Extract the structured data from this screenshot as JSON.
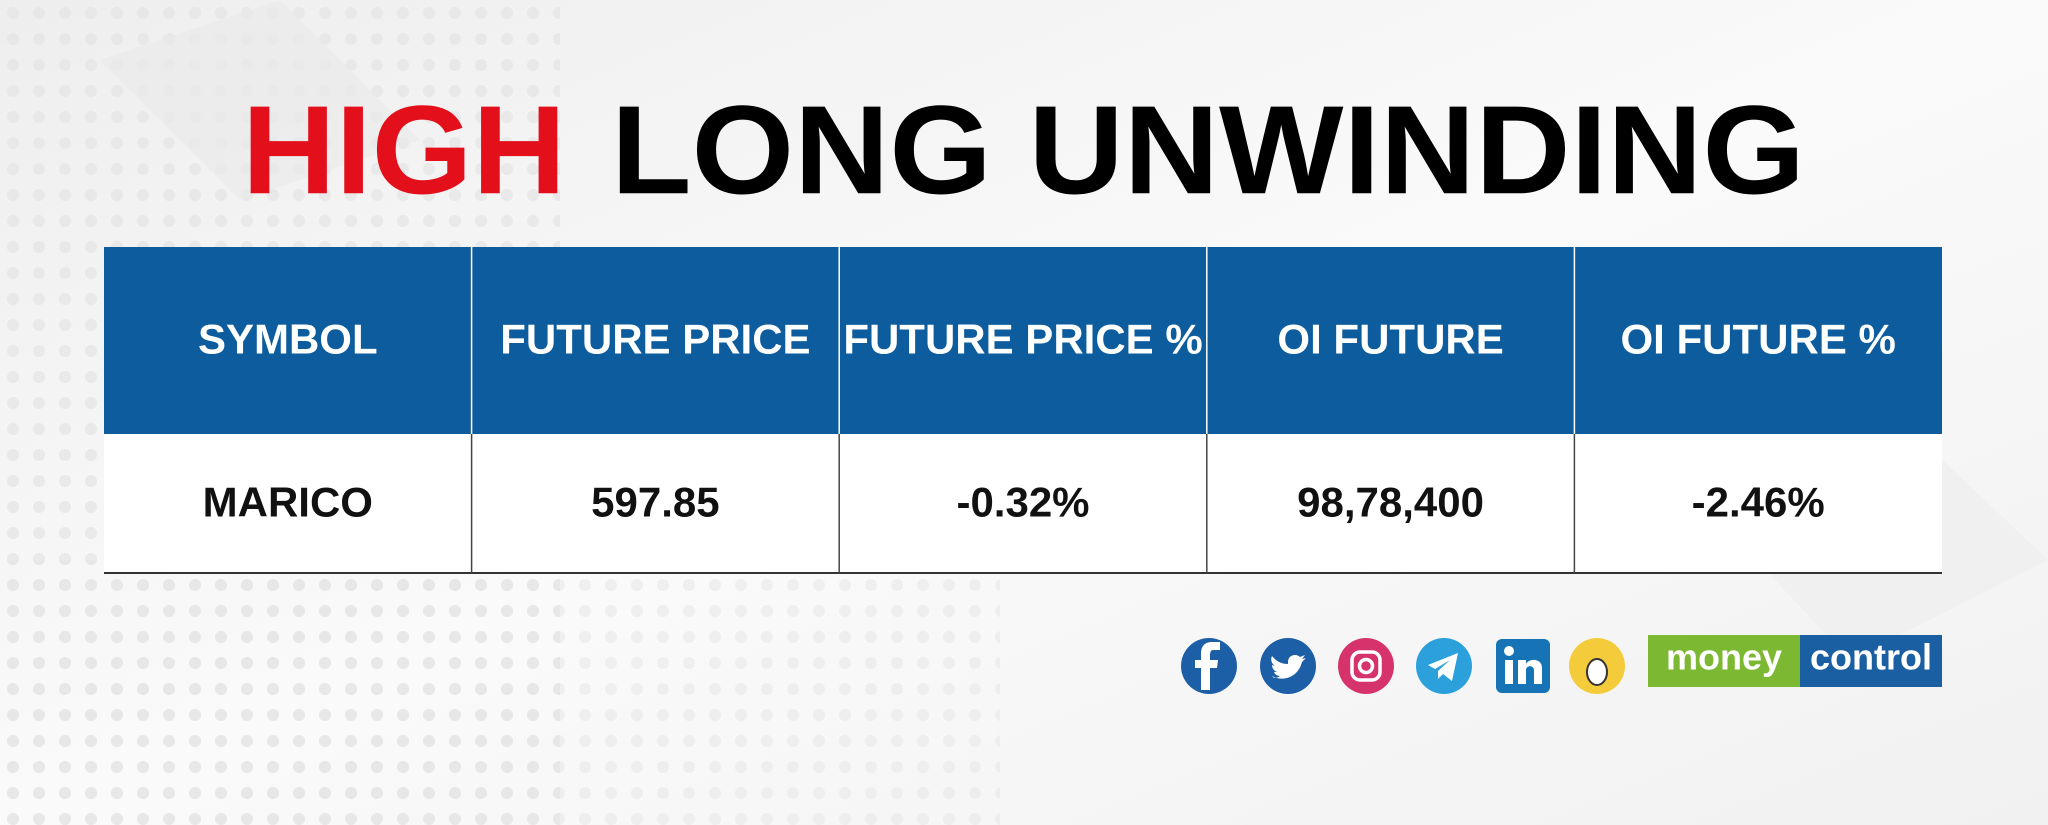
{
  "header": {
    "title_highlight": "HIGH",
    "title_rest": "LONG UNWINDING"
  },
  "table": {
    "columns": [
      "SYMBOL",
      "FUTURE PRICE",
      "FUTURE PRICE %",
      "OI FUTURE",
      "OI FUTURE %"
    ],
    "rows": [
      [
        "MARICO",
        "597.85",
        "-0.32%",
        "98,78,400",
        "-2.46%"
      ]
    ]
  },
  "logo": {
    "part1": "money",
    "part2": "control"
  }
}
